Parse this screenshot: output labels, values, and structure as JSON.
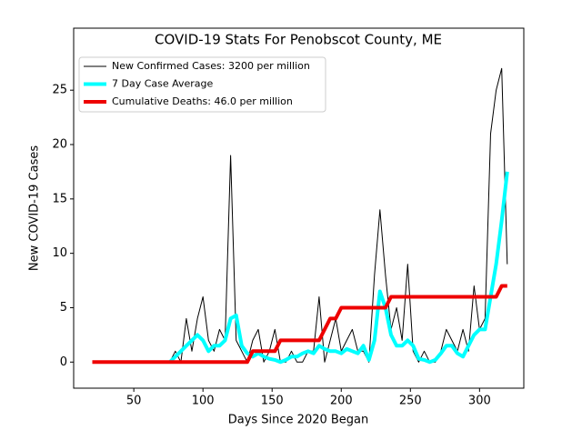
{
  "chart_data": {
    "type": "line",
    "title": "COVID-19 Stats For Penobscot County, ME",
    "xlabel": "Days Since 2020 Began",
    "ylabel": "New COVID-19 Cases",
    "x": [
      20,
      24,
      28,
      32,
      36,
      40,
      44,
      48,
      52,
      56,
      60,
      64,
      68,
      72,
      76,
      80,
      84,
      88,
      92,
      96,
      100,
      104,
      108,
      112,
      116,
      120,
      124,
      128,
      132,
      136,
      140,
      144,
      148,
      152,
      156,
      160,
      164,
      168,
      172,
      176,
      180,
      184,
      188,
      192,
      196,
      200,
      204,
      208,
      212,
      216,
      220,
      224,
      228,
      232,
      236,
      240,
      244,
      248,
      252,
      256,
      260,
      264,
      268,
      272,
      276,
      280,
      284,
      288,
      292,
      296,
      300,
      304,
      308,
      312,
      316,
      320
    ],
    "series": [
      {
        "name": "New Confirmed Cases: 3200 per million",
        "color": "#000000",
        "width": 1,
        "values": [
          null,
          null,
          null,
          null,
          null,
          null,
          null,
          null,
          null,
          null,
          null,
          null,
          null,
          null,
          0,
          1,
          0,
          4,
          1,
          4,
          6,
          2,
          1,
          3,
          2,
          19,
          2,
          1,
          0,
          2,
          3,
          0,
          1,
          3,
          0,
          0,
          1,
          0,
          0,
          1,
          1,
          6,
          0,
          2,
          4,
          1,
          2,
          3,
          1,
          1,
          0,
          8,
          14,
          8,
          3,
          5,
          2,
          9,
          1,
          0,
          1,
          0,
          0,
          1,
          3,
          2,
          1,
          3,
          1,
          7,
          3,
          4,
          21,
          25,
          27,
          9
        ]
      },
      {
        "name": "7 Day Case Average",
        "color": "#00ffff",
        "width": 4,
        "values": [
          null,
          null,
          null,
          null,
          null,
          null,
          null,
          null,
          null,
          null,
          null,
          null,
          null,
          null,
          0,
          0.5,
          1,
          1.5,
          2,
          2.5,
          2,
          1,
          1.5,
          1.5,
          2,
          4,
          4.3,
          1.5,
          0.8,
          0.5,
          0.8,
          0.5,
          0.3,
          0.2,
          0,
          0.2,
          0.5,
          0.5,
          0.8,
          1,
          0.8,
          1.5,
          1.2,
          1,
          1,
          0.8,
          1.2,
          1,
          0.8,
          1.5,
          0.2,
          2,
          6.5,
          5,
          2.5,
          1.5,
          1.5,
          2,
          1.5,
          0.3,
          0.2,
          0,
          0.2,
          0.8,
          1.5,
          1.5,
          0.8,
          0.5,
          1.5,
          2.5,
          3,
          3,
          6,
          9,
          13,
          17.5
        ]
      },
      {
        "name": "Cumulative Deaths: 46.0 per million",
        "color": "#ee0000",
        "width": 4,
        "values": [
          0,
          0,
          0,
          0,
          0,
          0,
          0,
          0,
          0,
          0,
          0,
          0,
          0,
          0,
          0,
          0,
          0,
          0,
          0,
          0,
          0,
          0,
          0,
          0,
          0,
          0,
          0,
          0,
          0,
          1,
          1,
          1,
          1,
          1,
          2,
          2,
          2,
          2,
          2,
          2,
          2,
          2,
          3,
          4,
          4,
          5,
          5,
          5,
          5,
          5,
          5,
          5,
          5,
          5,
          6,
          6,
          6,
          6,
          6,
          6,
          6,
          6,
          6,
          6,
          6,
          6,
          6,
          6,
          6,
          6,
          6,
          6,
          6,
          6,
          7,
          7
        ]
      }
    ],
    "xlim": [
      6.5,
      332
    ],
    "ylim": [
      -2.4,
      30.7
    ],
    "xticks": [
      50,
      100,
      150,
      200,
      250,
      300
    ],
    "yticks": [
      0,
      5,
      10,
      15,
      20,
      25
    ],
    "legend": "upper left"
  }
}
